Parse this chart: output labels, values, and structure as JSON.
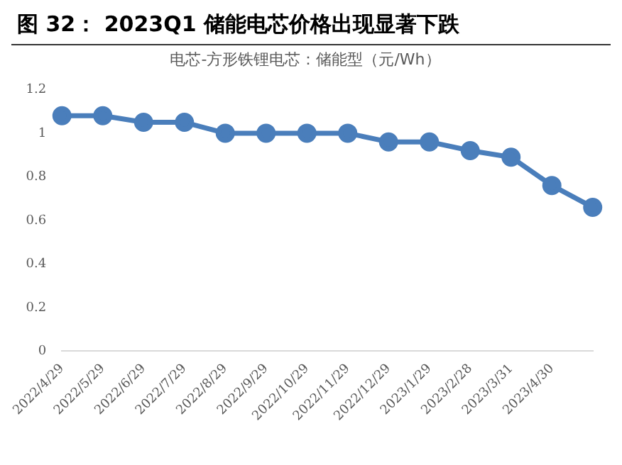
{
  "chart_data": {
    "type": "line",
    "title": "图 32： 2023Q1 储能电芯价格出现显著下跌",
    "subtitle": "电芯-方形铁锂电芯：储能型（元/Wh）",
    "categories": [
      "2022/4/29",
      "2022/5/29",
      "2022/6/29",
      "2022/7/29",
      "2022/8/29",
      "2022/9/29",
      "2022/10/29",
      "2022/11/29",
      "2022/12/29",
      "2023/1/29",
      "2023/2/28",
      "2023/3/31",
      "2023/4/30",
      null
    ],
    "series": [
      {
        "color": "#4a7ebb",
        "values": [
          1.08,
          1.08,
          1.05,
          1.05,
          1.0,
          1.0,
          1.0,
          1.0,
          0.96,
          0.96,
          0.92,
          0.89,
          0.76,
          0.66
        ]
      }
    ],
    "ylim": [
      0,
      1.2
    ],
    "yticks": [
      0,
      0.2,
      0.4,
      0.6,
      0.8,
      1,
      1.2
    ],
    "marker": "circle",
    "grid": false,
    "legend": false
  }
}
